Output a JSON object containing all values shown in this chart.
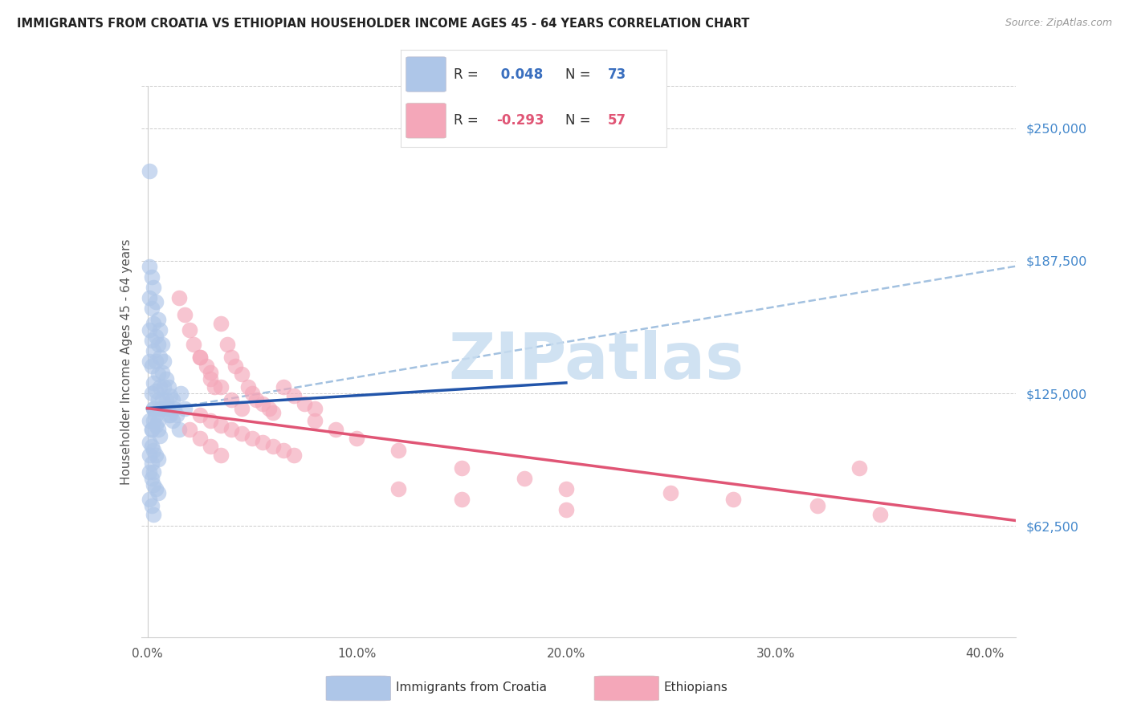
{
  "title": "IMMIGRANTS FROM CROATIA VS ETHIOPIAN HOUSEHOLDER INCOME AGES 45 - 64 YEARS CORRELATION CHART",
  "source": "Source: ZipAtlas.com",
  "xlabel_ticks": [
    "0.0%",
    "10.0%",
    "20.0%",
    "30.0%",
    "40.0%"
  ],
  "xlabel_tick_vals": [
    0.0,
    0.1,
    0.2,
    0.3,
    0.4
  ],
  "ylabel": "Householder Income Ages 45 - 64 years",
  "ylabel_ticks": [
    "$62,500",
    "$125,000",
    "$187,500",
    "$250,000"
  ],
  "ylabel_tick_vals": [
    62500,
    125000,
    187500,
    250000
  ],
  "ylim": [
    10000,
    270000
  ],
  "xlim": [
    -0.003,
    0.415
  ],
  "croatia_color": "#aec6e8",
  "ethiopia_color": "#f4a7b9",
  "croatia_line_color": "#2255aa",
  "ethiopia_line_color": "#e05575",
  "dash_line_color": "#99bbdd",
  "watermark_color": "#c8ddf0",
  "background_color": "#ffffff",
  "legend_R1": " 0.048",
  "legend_N1": "73",
  "legend_R2": "-0.293",
  "legend_N2": "57",
  "legend_color1": "#3a6fbf",
  "legend_color2": "#e05575",
  "legend_text_color": "#333333",
  "right_tick_color": "#4488cc",
  "source_color": "#999999",
  "title_color": "#222222"
}
